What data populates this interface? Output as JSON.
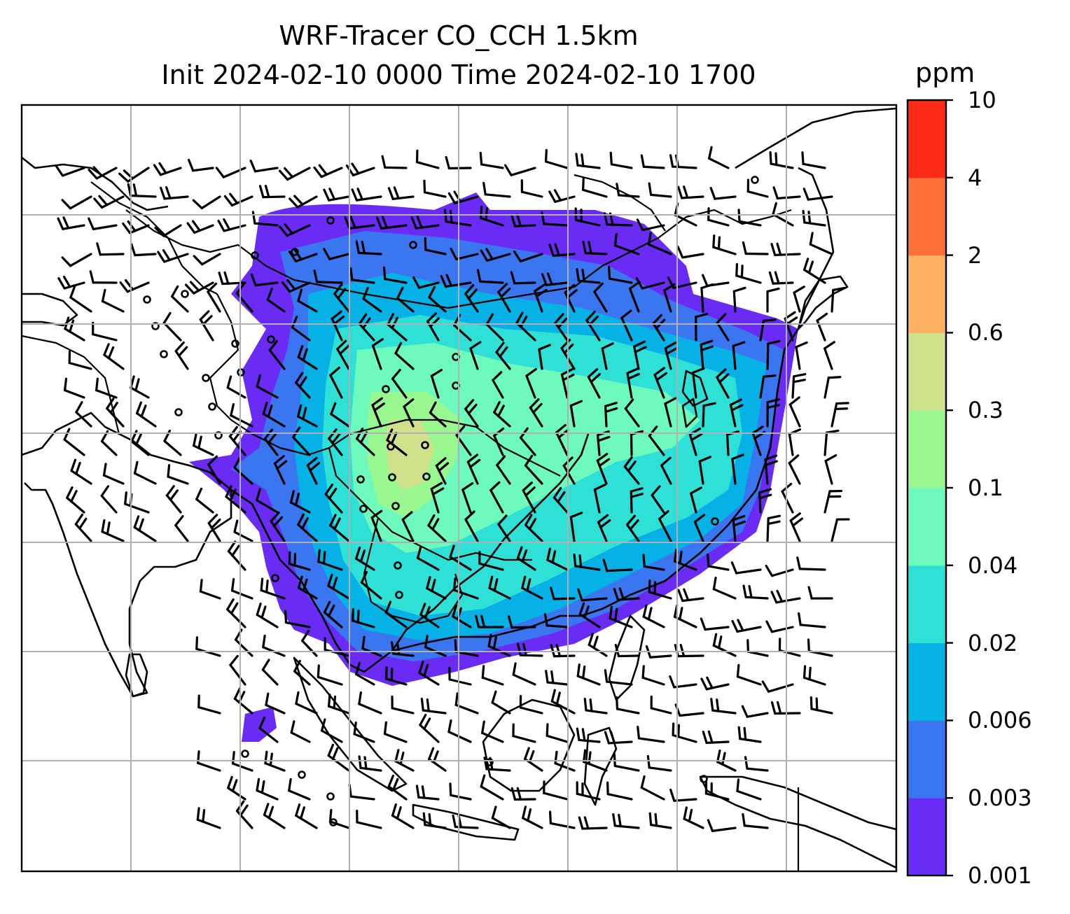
{
  "title": {
    "line1": "WRF-Tracer CO_CCH 1.5km",
    "line2": "Init 2024-02-10 0000 Time 2024-02-10 1700"
  },
  "colorbar": {
    "unit": "ppm",
    "levels": [
      "0.001",
      "0.003",
      "0.006",
      "0.02",
      "0.04",
      "0.1",
      "0.3",
      "0.6",
      "2",
      "4",
      "10"
    ],
    "colors": [
      "#6a2cf5",
      "#3a76f0",
      "#06b1e6",
      "#2ee0d6",
      "#6ef9bd",
      "#98f88f",
      "#cfe28b",
      "#fdb163",
      "#ff7138",
      "#ff2a17"
    ]
  },
  "map": {
    "layers": [
      "CO tracer concentration",
      "coastlines",
      "country borders",
      "gridlines",
      "wind barbs",
      "calm circles"
    ]
  }
}
